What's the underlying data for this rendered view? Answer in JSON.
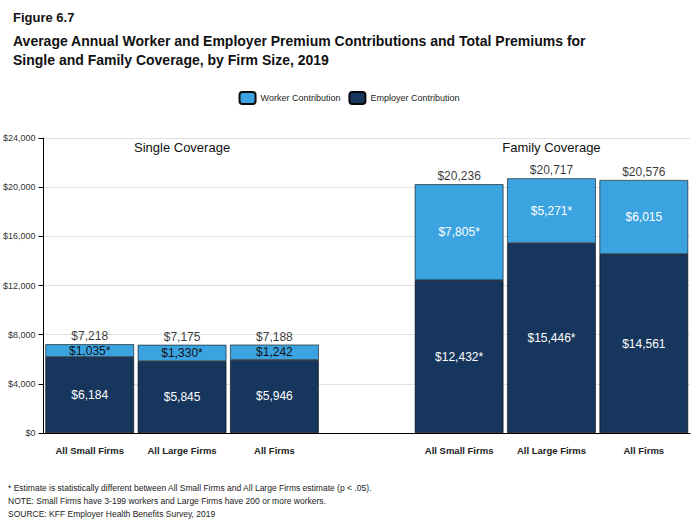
{
  "chart_data": {
    "type": "bar",
    "title": "Figure 6.7",
    "subtitle": "Average Annual Worker and Employer Premium Contributions and Total Premiums for Single and Family Coverage, by Firm Size, 2019",
    "annotations": [
      "Single Coverage",
      "Family Coverage"
    ],
    "categories": [
      "All Small Firms",
      "All Large Firms",
      "All Firms",
      null,
      "All Small Firms",
      "All Large Firms",
      "All Firms"
    ],
    "series": [
      {
        "name": "Worker Contribution",
        "color": "#3ba3e0",
        "values": [
          1035,
          1330,
          1242,
          null,
          7805,
          5271,
          6015
        ],
        "value_labels": [
          "$1,035*",
          "$1,330*",
          "$1,242",
          null,
          "$7,805*",
          "$5,271*",
          "$6,015"
        ]
      },
      {
        "name": "Employer Contribution",
        "color": "#17365d",
        "values": [
          6184,
          5845,
          5946,
          null,
          12432,
          15446,
          14561
        ],
        "value_labels": [
          "$6,184",
          "$5,845",
          "$5,946",
          null,
          "$12,432*",
          "$15,446*",
          "$14,561"
        ]
      }
    ],
    "totals": [
      7218,
      7175,
      7188,
      null,
      20236,
      20717,
      20576
    ],
    "total_labels": [
      "$7,218",
      "$7,175",
      "$7,188",
      null,
      "$20,236",
      "$20,717",
      "$20,576"
    ],
    "ylim": [
      0,
      24000
    ],
    "yticks": [
      {
        "value": 0,
        "label": "$0"
      },
      {
        "value": 4000,
        "label": "$4,000"
      },
      {
        "value": 8000,
        "label": "$8,000"
      },
      {
        "value": 12000,
        "label": "$12,000"
      },
      {
        "value": 16000,
        "label": "$16,000"
      },
      {
        "value": 20000,
        "label": "$20,000"
      },
      {
        "value": 24000,
        "label": "$24,000"
      }
    ],
    "stacked": true,
    "data_labels": true,
    "grid": true,
    "legend": "top",
    "notes": [
      "* Estimate is statistically different between All Small Firms and All Large Firms estimate (p < .05).",
      "NOTE: Small Firms have 3-199 workers and Large Firms have 200 or more workers.",
      "SOURCE: KFF Employer Health Benefits Survey, 2019"
    ]
  }
}
